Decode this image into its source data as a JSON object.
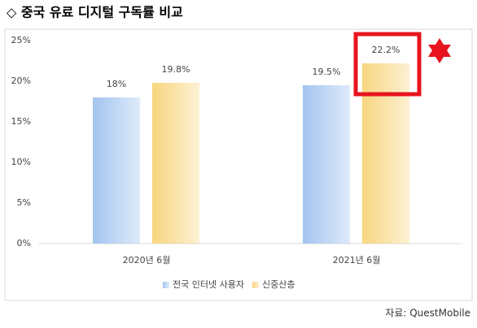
{
  "chart_data": {
    "type": "bar",
    "title": "◇ 중국 유료 디지털 구독률 비교",
    "categories": [
      "2020년 6월",
      "2021년 6월"
    ],
    "series": [
      {
        "name": "전국 인터넷 사용자",
        "color": "#a3c4f0",
        "values": [
          18,
          19.5
        ],
        "value_labels": [
          "18%",
          "19.5%"
        ]
      },
      {
        "name": "신중산층",
        "color": "#f8d680",
        "values": [
          19.8,
          22.2
        ],
        "value_labels": [
          "19.8%",
          "22.2%"
        ]
      }
    ],
    "ylim": [
      0,
      25
    ],
    "yticks": [
      {
        "value": 0,
        "label": "0%"
      },
      {
        "value": 5,
        "label": "5%"
      },
      {
        "value": 10,
        "label": "10%"
      },
      {
        "value": 15,
        "label": "15%"
      },
      {
        "value": 20,
        "label": "20%"
      },
      {
        "value": 25,
        "label": "25%"
      }
    ],
    "grid": false,
    "legend": "bottom",
    "source": "자료: QuestMobile"
  }
}
